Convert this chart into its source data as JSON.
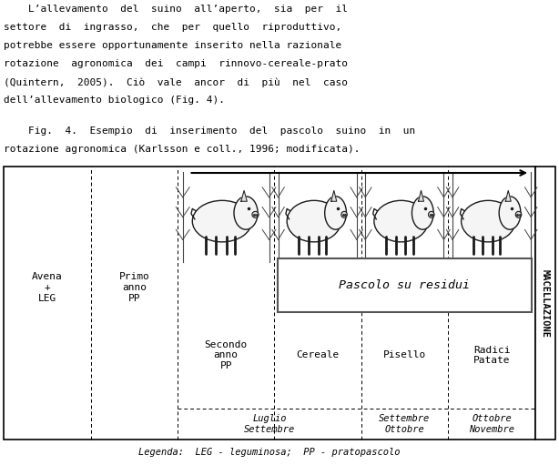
{
  "paragraph_lines": [
    "    L’allevamento  del  suino  all’aperto,  sia  per  il",
    "settore  di  ingrasso,  che  per  quello  riproduttivo,",
    "potrebbe essere opportunamente inserito nella razionale",
    "rotazione  agronomica  dei  campi  rinnovo-cereale-prato",
    "(Quintern,  2005).  Ciò  vale  ancor  di  più  nel  caso",
    "dell’allevamento biologico (Fig. 4)."
  ],
  "caption_line1": "    Fig.  4.  Esempio  di  inserimento  del  pascolo  suino  in  un",
  "caption_line2": "rotazione agronomica (Karlsson e coll., 1996; modificata).",
  "columns": [
    "Avena\n+\nLEG",
    "Primo\nanno\nPP",
    "Secondo\nanno\nPP",
    "Cereale",
    "Pisello",
    "Radici\nPatate"
  ],
  "col_widths": [
    1.0,
    1.0,
    1.1,
    1.0,
    1.0,
    1.0
  ],
  "pascolo_text": "Pascolo su residui",
  "macellazione_text": "MACELLAZIONE",
  "legenda_text": "Legenda:  LEG - leguminosa;  PP - pratopascolo",
  "bottom_labels": [
    [
      2,
      4,
      "Luglio\nSettembre"
    ],
    [
      4,
      5,
      "Settembre\nOttobre"
    ],
    [
      5,
      6,
      "Ottobre\nNovembre"
    ]
  ],
  "bg_color": "#ffffff",
  "text_color": "#000000"
}
